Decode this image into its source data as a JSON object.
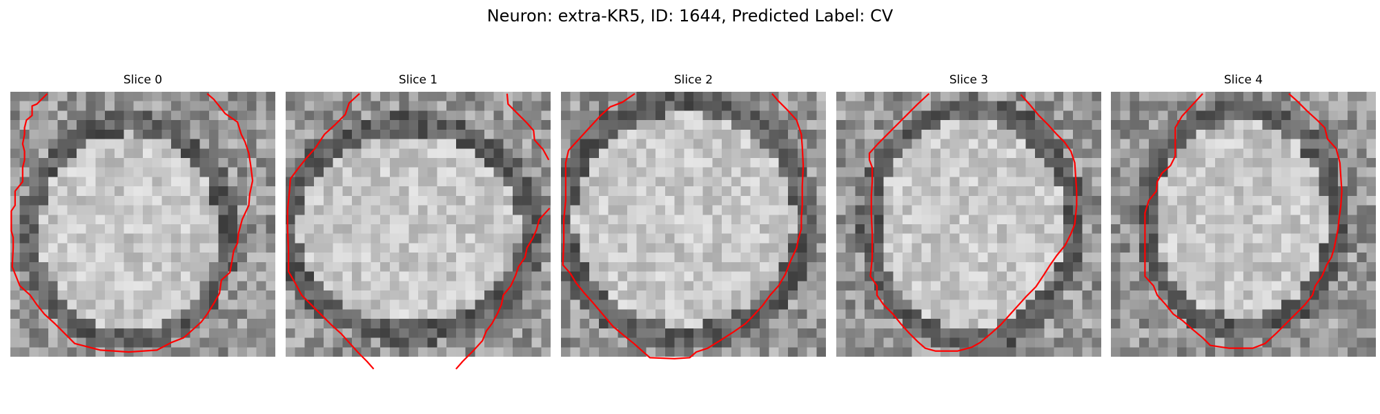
{
  "figure": {
    "title": "Neuron: extra-KR5, ID: 1644, Predicted Label: CV"
  },
  "contour_color": "#ff0000",
  "grid": {
    "size": 28
  },
  "slices": [
    {
      "title": "Slice 0",
      "contour": [
        [
          3.9,
          0.2
        ],
        [
          2.8,
          1.3
        ],
        [
          2.3,
          1.5
        ],
        [
          2.3,
          2.5
        ],
        [
          1.7,
          3
        ],
        [
          1.5,
          3.8
        ],
        [
          1.5,
          4.5
        ],
        [
          1.3,
          5.5
        ],
        [
          1.5,
          6.3
        ],
        [
          1.5,
          7.2
        ],
        [
          1.3,
          8
        ],
        [
          1.3,
          9.5
        ],
        [
          0.5,
          10.5
        ],
        [
          0.5,
          12
        ],
        [
          0.1,
          12.6
        ],
        [
          0.1,
          14.7
        ],
        [
          0.3,
          15.4
        ],
        [
          0.3,
          16.5
        ],
        [
          0.2,
          18.5
        ],
        [
          1,
          20.5
        ],
        [
          2.1,
          21.5
        ],
        [
          2.8,
          22.5
        ],
        [
          3.6,
          23.5
        ],
        [
          4.7,
          24.5
        ],
        [
          5.7,
          25.5
        ],
        [
          6.8,
          26.6
        ],
        [
          9.5,
          27.3
        ],
        [
          12.5,
          27.5
        ],
        [
          15.5,
          27.3
        ],
        [
          17,
          26.5
        ],
        [
          18.3,
          26
        ],
        [
          19.1,
          25.3
        ],
        [
          20.2,
          24.3
        ],
        [
          20.8,
          23.5
        ],
        [
          21.6,
          22.2
        ],
        [
          22.1,
          21.3
        ],
        [
          22.3,
          19.9
        ],
        [
          23.2,
          19.1
        ],
        [
          23.4,
          18
        ],
        [
          23.6,
          16.8
        ],
        [
          24,
          16
        ],
        [
          24.1,
          15
        ],
        [
          24.5,
          13.5
        ],
        [
          25.2,
          12
        ],
        [
          25.3,
          10.8
        ],
        [
          25.6,
          9.4
        ],
        [
          25.4,
          7.8
        ],
        [
          25.2,
          6.5
        ],
        [
          24.8,
          5.3
        ],
        [
          24.4,
          4.5
        ],
        [
          24,
          3.2
        ],
        [
          22.7,
          2.3
        ],
        [
          21.5,
          0.8
        ],
        [
          20.8,
          0.2
        ]
      ]
    },
    {
      "title": "Slice 1",
      "contour": [
        [
          7.8,
          0.2
        ],
        [
          6.7,
          1.2
        ],
        [
          6.3,
          2.4
        ],
        [
          5.2,
          3.5
        ],
        [
          4.1,
          4.5
        ],
        [
          3.7,
          5.1
        ],
        [
          3.1,
          6
        ],
        [
          2.2,
          7
        ],
        [
          1.4,
          8
        ],
        [
          0.5,
          9.2
        ],
        [
          0.4,
          10.5
        ],
        [
          0.2,
          12.5
        ],
        [
          0.2,
          14.5
        ],
        [
          0.3,
          16.8
        ],
        [
          0.3,
          19
        ],
        [
          1,
          20.2
        ],
        [
          1.7,
          21.5
        ],
        [
          2.6,
          22.4
        ],
        [
          3.7,
          23.5
        ],
        [
          4.9,
          24.7
        ],
        [
          5.9,
          25.6
        ],
        [
          6.8,
          26.6
        ],
        [
          7.7,
          27.6
        ],
        [
          8.6,
          28.5
        ],
        [
          9.3,
          29.3
        ]
      ]
    },
    {
      "title": "Slice 2",
      "contour": [
        [
          7.8,
          0.2
        ],
        [
          6.5,
          1.1
        ],
        [
          5.2,
          1.6
        ],
        [
          4.2,
          2.5
        ],
        [
          3,
          3.8
        ],
        [
          1.9,
          5
        ],
        [
          0.8,
          6.2
        ],
        [
          0.5,
          7.5
        ],
        [
          0.5,
          9.5
        ],
        [
          0.5,
          11.5
        ],
        [
          0.3,
          13.5
        ],
        [
          0.3,
          16
        ],
        [
          0.2,
          18.3
        ],
        [
          1,
          19.2
        ],
        [
          1.6,
          20.2
        ],
        [
          2.4,
          21.2
        ],
        [
          3.3,
          22.2
        ],
        [
          4.4,
          23.5
        ],
        [
          5.5,
          24.8
        ],
        [
          6.7,
          25.8
        ],
        [
          7.7,
          26.6
        ],
        [
          8.6,
          27.4
        ],
        [
          9.4,
          28.1
        ],
        [
          12,
          28.2
        ],
        [
          13.6,
          28.1
        ],
        [
          14.3,
          27.5
        ],
        [
          15.5,
          27.1
        ],
        [
          16.8,
          26.3
        ],
        [
          18.2,
          25.4
        ],
        [
          19.5,
          24.5
        ],
        [
          20.2,
          23.8
        ],
        [
          21.3,
          22.6
        ],
        [
          22.1,
          21.5
        ],
        [
          23,
          20.5
        ],
        [
          23.7,
          19.3
        ],
        [
          24.3,
          17.8
        ],
        [
          24.9,
          16.5
        ],
        [
          25.1,
          15.5
        ],
        [
          25.4,
          14.5
        ],
        [
          25.4,
          13.3
        ],
        [
          25.5,
          12
        ],
        [
          25.5,
          10
        ],
        [
          25.6,
          7.8
        ],
        [
          25.5,
          5.8
        ],
        [
          25.4,
          4.5
        ],
        [
          24.9,
          3
        ],
        [
          24,
          2
        ],
        [
          23,
          1
        ],
        [
          22.3,
          0.2
        ]
      ]
    },
    {
      "title": "Slice 3",
      "contour": [
        [
          9.8,
          0.2
        ],
        [
          8.6,
          1.3
        ],
        [
          7.5,
          2.4
        ],
        [
          6.4,
          3.5
        ],
        [
          5.4,
          4.5
        ],
        [
          4.4,
          5.5
        ],
        [
          3.5,
          6.5
        ],
        [
          3.5,
          7.2
        ],
        [
          3.8,
          8
        ],
        [
          3.8,
          9.5
        ],
        [
          3.7,
          11
        ],
        [
          3.7,
          13
        ],
        [
          3.8,
          15
        ],
        [
          3.8,
          17.5
        ],
        [
          3.6,
          19.5
        ],
        [
          4.3,
          20.5
        ],
        [
          4.3,
          21.5
        ],
        [
          5,
          22.5
        ],
        [
          6,
          23.5
        ],
        [
          6.8,
          24.5
        ],
        [
          7.7,
          25.5
        ],
        [
          8.6,
          26.4
        ],
        [
          9.4,
          27.1
        ],
        [
          10.5,
          27.4
        ],
        [
          12.8,
          27.4
        ],
        [
          14.3,
          27
        ],
        [
          15.2,
          26.5
        ],
        [
          16.4,
          25.5
        ],
        [
          17.4,
          24.6
        ],
        [
          18.3,
          23.6
        ],
        [
          19.2,
          22.6
        ],
        [
          20.1,
          21.6
        ],
        [
          21.1,
          20.6
        ],
        [
          21.9,
          19.4
        ],
        [
          22.6,
          18.3
        ],
        [
          23.3,
          17.3
        ],
        [
          24.2,
          16.2
        ],
        [
          24.8,
          15
        ],
        [
          25.2,
          14
        ],
        [
          25.3,
          13
        ],
        [
          25.4,
          12
        ],
        [
          25.4,
          10.5
        ],
        [
          25.3,
          9
        ],
        [
          25.2,
          7.5
        ],
        [
          24.8,
          6.3
        ],
        [
          24.1,
          5.3
        ],
        [
          23.3,
          4.5
        ],
        [
          22.4,
          3.5
        ],
        [
          21.4,
          2.5
        ],
        [
          20.4,
          1.3
        ],
        [
          19.5,
          0.3
        ]
      ]
    },
    {
      "title": "Slice 4",
      "contour": [
        [
          9.7,
          0.2
        ],
        [
          8.6,
          1.4
        ],
        [
          7.5,
          2.6
        ],
        [
          6.8,
          3.8
        ],
        [
          6.8,
          5.5
        ],
        [
          6.8,
          6.8
        ],
        [
          6.3,
          7.8
        ],
        [
          5.4,
          8.6
        ],
        [
          4.9,
          9.5
        ],
        [
          4.8,
          10.5
        ],
        [
          4,
          11.5
        ],
        [
          3.6,
          12.8
        ],
        [
          3.6,
          14.5
        ],
        [
          3.6,
          17
        ],
        [
          3.6,
          19.5
        ],
        [
          4.5,
          20.5
        ],
        [
          4.9,
          21.5
        ],
        [
          5.8,
          22.5
        ],
        [
          6.6,
          23.5
        ],
        [
          7.6,
          24.2
        ],
        [
          8.5,
          25
        ],
        [
          9.7,
          26
        ],
        [
          10.5,
          26.8
        ],
        [
          12.5,
          27.1
        ],
        [
          15,
          27.1
        ],
        [
          16.3,
          26.6
        ],
        [
          17.5,
          25.5
        ],
        [
          18.5,
          24.5
        ],
        [
          19.5,
          23.5
        ],
        [
          20.5,
          22.5
        ],
        [
          21.3,
          21.5
        ],
        [
          21.6,
          20.5
        ],
        [
          22.3,
          19.5
        ],
        [
          22.8,
          18.3
        ],
        [
          23.3,
          17.5
        ],
        [
          23.6,
          16.5
        ],
        [
          23.8,
          15.5
        ],
        [
          24,
          14.5
        ],
        [
          24.1,
          13.5
        ],
        [
          24.3,
          12
        ],
        [
          24.4,
          10.5
        ],
        [
          24.3,
          9
        ],
        [
          24.2,
          7.5
        ],
        [
          23.8,
          6
        ],
        [
          22.9,
          5
        ],
        [
          22.6,
          3.8
        ],
        [
          21.8,
          3
        ],
        [
          20.7,
          2
        ],
        [
          19.7,
          1
        ],
        [
          18.8,
          0.2
        ]
      ]
    }
  ]
}
